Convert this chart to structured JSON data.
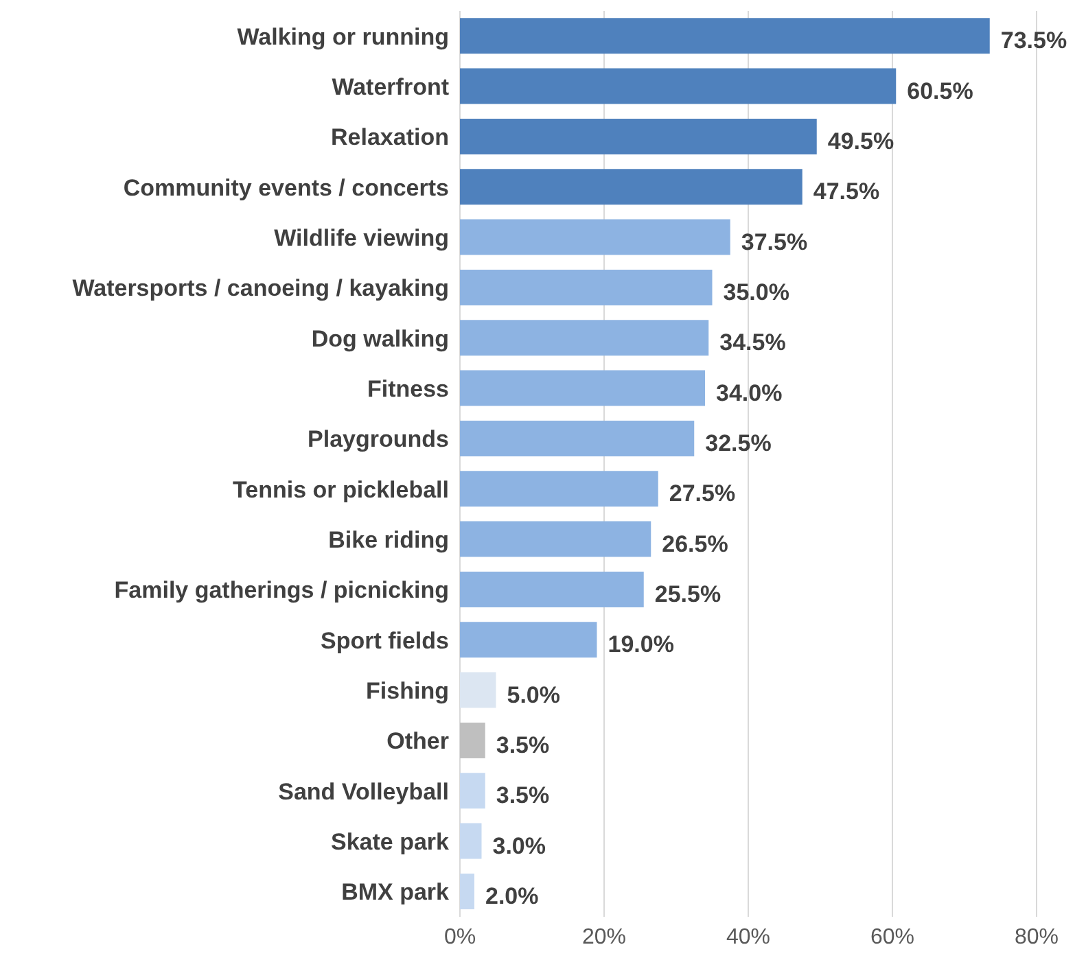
{
  "chart_data": {
    "type": "bar",
    "orientation": "horizontal",
    "categories": [
      "Walking or running",
      "Waterfront",
      "Relaxation",
      "Community events / concerts",
      "Wildlife viewing",
      "Watersports / canoeing / kayaking",
      "Dog walking",
      "Fitness",
      "Playgrounds",
      "Tennis or pickleball",
      "Bike riding",
      "Family gatherings / picnicking",
      "Sport fields",
      "Fishing",
      "Other",
      "Sand Volleyball",
      "Skate park",
      "BMX park"
    ],
    "values": [
      73.5,
      60.5,
      49.5,
      47.5,
      37.5,
      35.0,
      34.5,
      34.0,
      32.5,
      27.5,
      26.5,
      25.5,
      19.0,
      5.0,
      3.5,
      3.5,
      3.0,
      2.0
    ],
    "colors": [
      "#4f81bd",
      "#4f81bd",
      "#4f81bd",
      "#4f81bd",
      "#8db3e2",
      "#8db3e2",
      "#8db3e2",
      "#8db3e2",
      "#8db3e2",
      "#8db3e2",
      "#8db3e2",
      "#8db3e2",
      "#8db3e2",
      "#dce6f2",
      "#bfbfbf",
      "#c6d9f1",
      "#c6d9f1",
      "#c6d9f1"
    ],
    "value_labels": [
      "73.5%",
      "60.5%",
      "49.5%",
      "47.5%",
      "37.5%",
      "35.0%",
      "34.5%",
      "34.0%",
      "32.5%",
      "27.5%",
      "26.5%",
      "25.5%",
      "19.0%",
      "5.0%",
      "3.5%",
      "3.5%",
      "3.0%",
      "2.0%"
    ],
    "xlim": [
      0,
      80
    ],
    "xticks": [
      {
        "value": 0,
        "label": "0%"
      },
      {
        "value": 20,
        "label": "20%"
      },
      {
        "value": 40,
        "label": "40%"
      },
      {
        "value": 60,
        "label": "60%"
      },
      {
        "value": 80,
        "label": "80%"
      }
    ],
    "grid": "x",
    "legend": false
  }
}
